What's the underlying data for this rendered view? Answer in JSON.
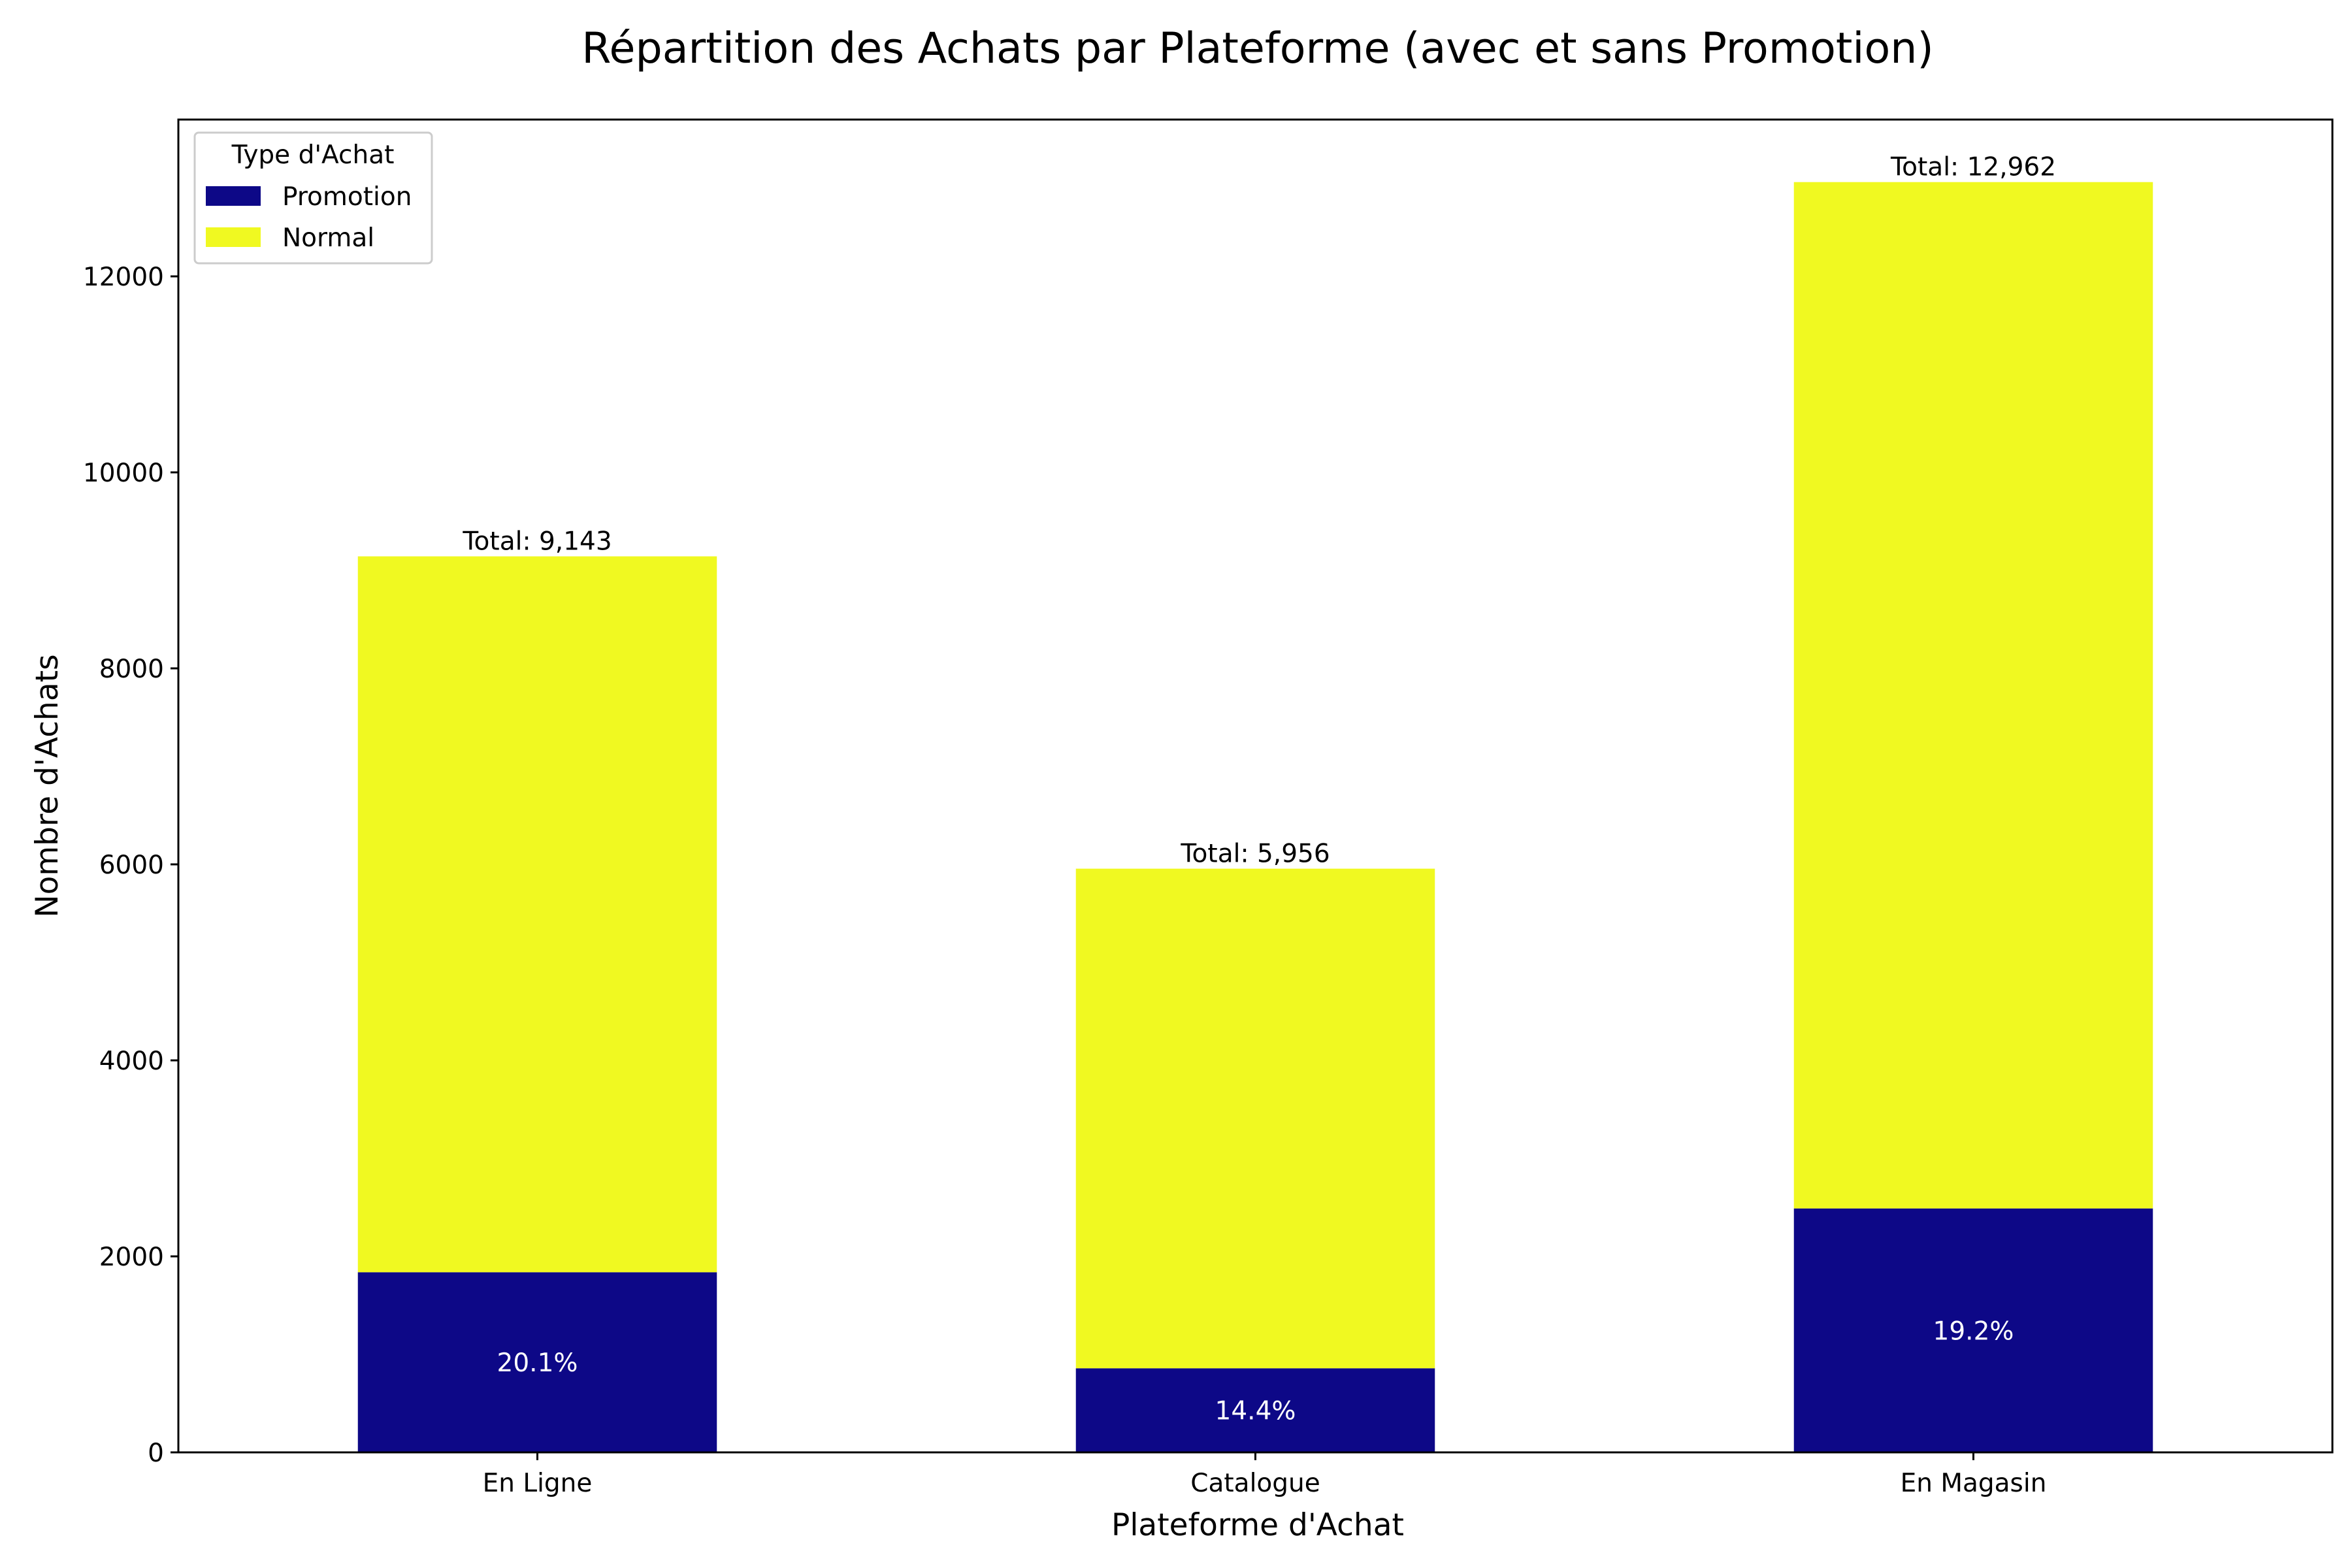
{
  "chart_data": {
    "type": "bar",
    "stacked": true,
    "title": "Répartition des Achats par Plateforme (avec et sans Promotion)",
    "xlabel": "Plateforme d'Achat",
    "ylabel": "Nombre d'Achats",
    "categories": [
      "En Ligne",
      "Catalogue",
      "En Magasin"
    ],
    "series": [
      {
        "name": "Promotion",
        "color": "#0d0887",
        "values": [
          1838,
          858,
          2489
        ]
      },
      {
        "name": "Normal",
        "color": "#f0f921",
        "values": [
          7305,
          5098,
          10473
        ]
      }
    ],
    "totals": [
      9143,
      5956,
      12962
    ],
    "total_labels": [
      "Total: 9,143",
      "Total: 5,956",
      "Total: 12,962"
    ],
    "percent_labels": [
      "20.1%",
      "14.4%",
      "19.2%"
    ],
    "ylim": [
      0,
      13600
    ],
    "yticks": [
      0,
      2000,
      4000,
      6000,
      8000,
      10000,
      12000
    ],
    "legend": {
      "title": "Type d'Achat",
      "placement": "top-left",
      "entries": [
        "Promotion",
        "Normal"
      ]
    },
    "grid": false
  }
}
